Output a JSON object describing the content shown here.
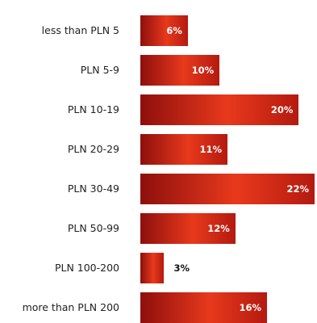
{
  "chart_data": {
    "type": "bar",
    "orientation": "horizontal",
    "categories": [
      "less than PLN 5",
      "PLN 5-9",
      "PLN 10-19",
      "PLN 20-29",
      "PLN 30-49",
      "PLN 50-99",
      "PLN 100-200",
      "more than PLN 200"
    ],
    "values": [
      6,
      10,
      20,
      11,
      22,
      12,
      3,
      16
    ],
    "value_labels": [
      "6%",
      "10%",
      "20%",
      "11%",
      "22%",
      "12%",
      "3%",
      "16%"
    ],
    "unit": "%",
    "xlim": [
      0,
      22
    ],
    "grid": false,
    "legend": "none",
    "colors": {
      "bar_dark": "#8e0f0c",
      "bar_light": "#e8391c",
      "label_inside": "#ffffff",
      "label_outside": "#111111"
    }
  }
}
